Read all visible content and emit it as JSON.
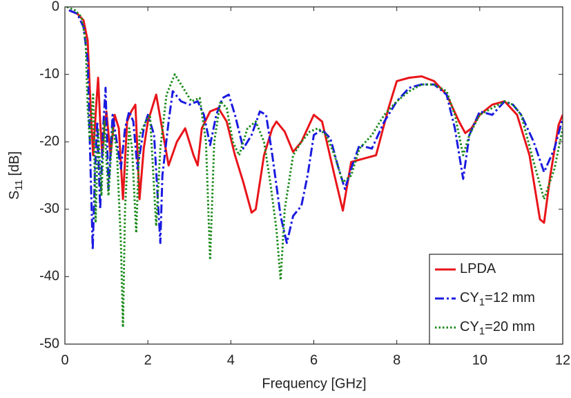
{
  "chart_data": {
    "type": "line",
    "xlabel": "Frequency [GHz]",
    "ylabel": [
      "S",
      "11",
      " [dB]"
    ],
    "xlim": [
      0,
      12
    ],
    "xticks": [
      0,
      2,
      4,
      6,
      8,
      10,
      12
    ],
    "ylim": [
      -50,
      0
    ],
    "yticks": [
      -50,
      -40,
      -30,
      -20,
      -10,
      0
    ],
    "legend": "lower right",
    "series": [
      {
        "name": [
          "LPDA"
        ],
        "color": "#e8141a",
        "style": "solid",
        "x": [
          0.1,
          0.3,
          0.45,
          0.55,
          0.62,
          0.68,
          0.75,
          0.8,
          0.85,
          0.9,
          0.95,
          1.0,
          1.1,
          1.2,
          1.3,
          1.4,
          1.5,
          1.6,
          1.7,
          1.8,
          1.9,
          2.0,
          2.1,
          2.2,
          2.4,
          2.5,
          2.7,
          2.9,
          3.1,
          3.2,
          3.3,
          3.5,
          3.7,
          3.9,
          4.1,
          4.3,
          4.5,
          4.6,
          4.8,
          5.0,
          5.1,
          5.3,
          5.5,
          5.7,
          6.0,
          6.2,
          6.5,
          6.7,
          6.9,
          7.2,
          7.5,
          7.8,
          8.0,
          8.3,
          8.6,
          8.9,
          9.2,
          9.5,
          9.65,
          9.8,
          10.0,
          10.3,
          10.6,
          10.9,
          11.2,
          11.45,
          11.55,
          11.7,
          11.9,
          12
        ],
        "y": [
          -0.5,
          -1,
          -2,
          -5,
          -15,
          -22,
          -15,
          -10.5,
          -17,
          -22,
          -18,
          -15.5,
          -22,
          -16,
          -18,
          -28.5,
          -17,
          -15.5,
          -14.5,
          -28.5,
          -21,
          -17,
          -15,
          -13,
          -20,
          -23.5,
          -20,
          -18,
          -22,
          -23.5,
          -18,
          -15.5,
          -15,
          -17,
          -22,
          -26,
          -30.5,
          -30,
          -22,
          -18,
          -17,
          -18.5,
          -21.5,
          -20,
          -16,
          -17,
          -25,
          -30.2,
          -23,
          -22.5,
          -22,
          -15,
          -11,
          -10.5,
          -10.3,
          -11,
          -13,
          -17,
          -18.7,
          -18,
          -16,
          -14.5,
          -14,
          -16,
          -22,
          -31.5,
          -32,
          -25,
          -17.5,
          -16
        ]
      },
      {
        "name": [
          "CY",
          "1",
          "=12 mm"
        ],
        "color": "#1a1ae0",
        "style": "dashdot",
        "x": [
          0.1,
          0.3,
          0.45,
          0.55,
          0.6,
          0.67,
          0.72,
          0.78,
          0.85,
          0.92,
          0.98,
          1.05,
          1.15,
          1.25,
          1.35,
          1.45,
          1.55,
          1.65,
          1.75,
          1.9,
          2.0,
          2.15,
          2.3,
          2.35,
          2.5,
          2.6,
          2.8,
          3.0,
          3.2,
          3.35,
          3.5,
          3.65,
          3.8,
          3.95,
          4.1,
          4.3,
          4.5,
          4.7,
          4.85,
          5.0,
          5.2,
          5.35,
          5.5,
          5.7,
          5.85,
          6.0,
          6.2,
          6.4,
          6.6,
          6.75,
          6.9,
          7.1,
          7.4,
          7.7,
          8.0,
          8.3,
          8.6,
          8.9,
          9.2,
          9.4,
          9.6,
          9.75,
          10.0,
          10.3,
          10.6,
          10.8,
          11.0,
          11.3,
          11.55,
          11.8,
          12
        ],
        "y": [
          -0.5,
          -1,
          -3,
          -8,
          -20,
          -36,
          -25,
          -17,
          -30,
          -18,
          -12,
          -27,
          -16,
          -20,
          -24,
          -18,
          -15.5,
          -17,
          -24,
          -18,
          -16,
          -19,
          -35,
          -25,
          -17,
          -12.5,
          -14,
          -14.5,
          -14,
          -16,
          -20.5,
          -16,
          -13.5,
          -13,
          -16,
          -21,
          -19,
          -15.5,
          -16,
          -22,
          -31,
          -35,
          -31,
          -29.5,
          -25,
          -19,
          -18.2,
          -19.5,
          -24,
          -27,
          -24,
          -20.5,
          -21,
          -17,
          -14,
          -12,
          -11.5,
          -11.5,
          -13,
          -18,
          -25.5,
          -19,
          -15.5,
          -16,
          -14,
          -14.5,
          -16,
          -20,
          -24.5,
          -21,
          -16.5
        ]
      },
      {
        "name": [
          "CY",
          "1",
          "=20 mm"
        ],
        "color": "#1a8a1a",
        "style": "dotted",
        "x": [
          0.05,
          0.25,
          0.4,
          0.5,
          0.55,
          0.6,
          0.68,
          0.74,
          0.8,
          0.88,
          0.95,
          1.05,
          1.15,
          1.25,
          1.35,
          1.4,
          1.45,
          1.55,
          1.62,
          1.72,
          1.8,
          1.95,
          2.05,
          2.2,
          2.3,
          2.45,
          2.65,
          2.85,
          3.05,
          3.25,
          3.4,
          3.5,
          3.6,
          3.75,
          3.9,
          4.05,
          4.2,
          4.4,
          4.6,
          4.8,
          4.95,
          5.1,
          5.2,
          5.3,
          5.5,
          5.7,
          5.9,
          6.1,
          6.3,
          6.5,
          6.7,
          6.9,
          7.1,
          7.4,
          7.7,
          8.0,
          8.3,
          8.6,
          8.9,
          9.2,
          9.4,
          9.6,
          9.75,
          10.0,
          10.3,
          10.6,
          10.8,
          11.0,
          11.3,
          11.55,
          11.8,
          12
        ],
        "y": [
          0,
          -0.5,
          -1.5,
          -5,
          -15,
          -20,
          -13,
          -32,
          -18,
          -28,
          -17,
          -28,
          -18,
          -21,
          -35,
          -47.5,
          -30,
          -18,
          -21,
          -33.5,
          -19,
          -17,
          -16,
          -32.5,
          -21,
          -13,
          -10,
          -12,
          -14,
          -13.5,
          -20,
          -37.5,
          -20,
          -14,
          -15,
          -20,
          -22,
          -18,
          -17,
          -20,
          -26,
          -33,
          -40.5,
          -30,
          -22,
          -20,
          -18.5,
          -18,
          -19,
          -22,
          -26,
          -25,
          -21,
          -19,
          -16,
          -14,
          -12.5,
          -11.5,
          -11.5,
          -12.5,
          -16,
          -22,
          -19,
          -16,
          -15,
          -14,
          -14.5,
          -16,
          -23,
          -28.5,
          -24,
          -18
        ]
      }
    ]
  }
}
